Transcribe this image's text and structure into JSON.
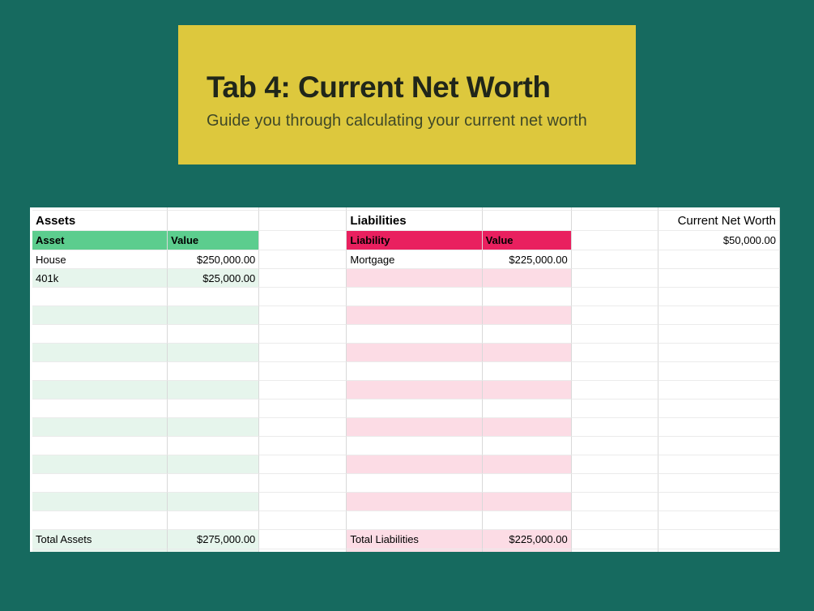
{
  "page": {
    "background_color": "#166a5f"
  },
  "banner": {
    "background_color": "#ddc83d",
    "title": "Tab 4: Current Net Worth",
    "subtitle": "Guide you through calculating your current net worth"
  },
  "sheet": {
    "colors": {
      "assets_header": "#5ccd8e",
      "assets_row_tint": "#e6f5ec",
      "liabilities_header": "#e9205f",
      "liabilities_row_tint": "#fcdce5"
    },
    "assets": {
      "section_title": "Assets",
      "columns": [
        "Asset",
        "Value"
      ],
      "rows": [
        {
          "name": "House",
          "value": "$250,000.00"
        },
        {
          "name": "401k",
          "value": "$25,000.00"
        }
      ],
      "total_label": "Total Assets",
      "total_value": "$275,000.00"
    },
    "liabilities": {
      "section_title": "Liabilities",
      "columns": [
        "Liability",
        "Value"
      ],
      "rows": [
        {
          "name": "Mortgage",
          "value": "$225,000.00"
        }
      ],
      "total_label": "Total Liabilities",
      "total_value": "$225,000.00"
    },
    "net_worth": {
      "label": "Current Net Worth",
      "value": "$50,000.00"
    },
    "empty_body_rows": 13
  }
}
